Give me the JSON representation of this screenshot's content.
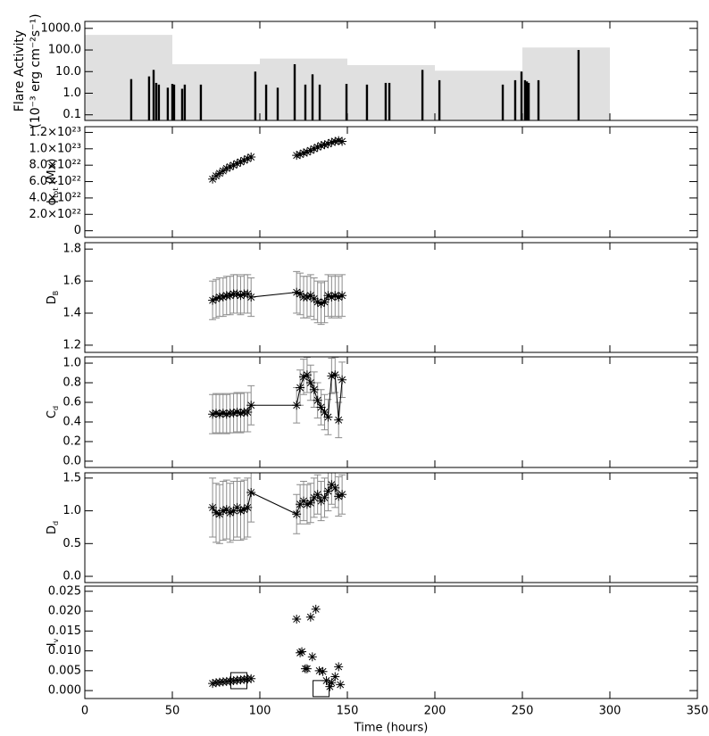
{
  "chart_data": [
    {
      "type": "bar",
      "ylabel": [
        "Flare Activity",
        "(10⁻³ erg cm⁻²s⁻¹)"
      ],
      "log_y": true,
      "ylim": [
        0.055,
        2100
      ],
      "yticks": [
        0.1,
        {
          "value": 1,
          "label": "1.0"
        },
        {
          "value": 10,
          "label": "10.0"
        },
        {
          "value": 100,
          "label": "100.0"
        },
        {
          "value": 1000,
          "label": "1000.0"
        }
      ],
      "xlim": [
        0,
        350
      ],
      "xticks": [
        0,
        50,
        100,
        150,
        200,
        250,
        300,
        350
      ],
      "background": {
        "edges": [
          0,
          50,
          100,
          150,
          200,
          250,
          300
        ],
        "values": [
          500,
          22,
          40,
          20,
          11,
          130
        ],
        "color": "#e0e0e0"
      },
      "x": [
        26.5,
        36.7,
        39.3,
        40.8,
        42.3,
        47.4,
        50,
        51,
        55.6,
        57.1,
        66.3,
        97.4,
        103.6,
        110.2,
        119.9,
        126,
        130.1,
        134.2,
        149.5,
        161.2,
        171.9,
        174,
        192.9,
        202.6,
        238.8,
        245.9,
        249.5,
        251.5,
        252.6,
        253.6,
        259.2,
        282.1
      ],
      "values": [
        4.5,
        6,
        12,
        3,
        2.5,
        1.8,
        2.7,
        2.5,
        1.6,
        2.5,
        2.5,
        10,
        2.5,
        1.8,
        22,
        2.5,
        7.5,
        2.5,
        2.7,
        2.5,
        3,
        3,
        12,
        4,
        2.5,
        4,
        10,
        4,
        3.5,
        3,
        4,
        100
      ],
      "color": "#000000"
    },
    {
      "type": "scatter",
      "ylabel": [
        {
          "t": "ϕ"
        },
        {
          "t": "tot",
          "sub": true
        },
        {
          "t": "(Mx)"
        }
      ],
      "ylim": [
        -8e+21,
        1.27e+23
      ],
      "yticks": [
        0,
        {
          "value": 2e+22,
          "label": "2.0×10²²"
        },
        {
          "value": 4e+22,
          "label": "4.0×10²²"
        },
        {
          "value": 6e+22,
          "label": "6.0×10²²"
        },
        {
          "value": 8e+22,
          "label": "8.0×10²²"
        },
        {
          "value": 1e+23,
          "label": "1.0×10²³"
        },
        {
          "value": 1.2e+23,
          "label": "1.2×10²³"
        }
      ],
      "xlim": [
        0,
        350
      ],
      "xticks": [
        0,
        50,
        100,
        150,
        200,
        250,
        300,
        350
      ],
      "x": [
        73,
        75,
        77,
        79,
        81,
        83,
        85,
        87,
        89,
        91,
        93,
        95,
        121,
        123,
        125,
        127,
        129,
        131,
        133,
        135,
        137,
        139,
        141,
        143,
        145,
        147
      ],
      "values": [
        6.3e+22,
        6.7e+22,
        7e+22,
        7.3e+22,
        7.6e+22,
        7.8e+22,
        8e+22,
        8.2e+22,
        8.4e+22,
        8.6e+22,
        8.8e+22,
        9e+22,
        9.2e+22,
        9.3e+22,
        9.5e+22,
        9.6e+22,
        9.8e+22,
        1e+23,
        1.02e+23,
        1.04e+23,
        1.05e+23,
        1.06e+23,
        1.08e+23,
        1.09e+23,
        1.1e+23,
        1.09e+23
      ],
      "color": "#000000"
    },
    {
      "type": "line",
      "ylabel": [
        {
          "t": "D"
        },
        {
          "t": "B",
          "sub": true
        }
      ],
      "ylim": [
        1.155,
        1.84
      ],
      "yticks": [
        1.2,
        1.4,
        1.6,
        1.8
      ],
      "xlim": [
        0,
        350
      ],
      "xticks": [
        0,
        50,
        100,
        150,
        200,
        250,
        300,
        350
      ],
      "x": [
        73,
        75,
        77,
        79,
        81,
        83,
        85,
        87,
        89,
        91,
        93,
        95,
        121,
        123,
        125,
        127,
        129,
        131,
        133,
        135,
        137,
        139,
        141,
        143,
        145,
        147
      ],
      "values": [
        1.48,
        1.49,
        1.5,
        1.5,
        1.51,
        1.51,
        1.52,
        1.52,
        1.51,
        1.52,
        1.52,
        1.5,
        1.53,
        1.52,
        1.5,
        1.5,
        1.51,
        1.49,
        1.47,
        1.46,
        1.47,
        1.51,
        1.5,
        1.51,
        1.5,
        1.51
      ],
      "errors": [
        0.12,
        0.12,
        0.12,
        0.12,
        0.12,
        0.12,
        0.12,
        0.12,
        0.12,
        0.12,
        0.12,
        0.12,
        0.13,
        0.13,
        0.13,
        0.13,
        0.13,
        0.13,
        0.13,
        0.13,
        0.13,
        0.13,
        0.13,
        0.13,
        0.13,
        0.13
      ],
      "color": "#000000",
      "error_color": "#8c8c8c"
    },
    {
      "type": "line",
      "ylabel": [
        {
          "t": "C"
        },
        {
          "t": "d",
          "sub": true
        }
      ],
      "ylim": [
        -0.064,
        1.064
      ],
      "yticks": [
        {
          "value": 0,
          "label": "0.0"
        },
        0.2,
        0.4,
        0.6,
        0.8,
        {
          "value": 1,
          "label": "1.0"
        }
      ],
      "xlim": [
        0,
        350
      ],
      "xticks": [
        0,
        50,
        100,
        150,
        200,
        250,
        300,
        350
      ],
      "x": [
        73,
        75,
        77,
        79,
        81,
        83,
        85,
        87,
        89,
        91,
        93,
        95,
        121,
        123,
        125,
        127,
        129,
        131,
        133,
        135,
        137,
        139,
        141,
        143,
        145,
        147
      ],
      "values": [
        0.48,
        0.49,
        0.48,
        0.49,
        0.48,
        0.49,
        0.49,
        0.5,
        0.49,
        0.5,
        0.5,
        0.57,
        0.57,
        0.75,
        0.86,
        0.88,
        0.8,
        0.73,
        0.62,
        0.55,
        0.5,
        0.45,
        0.87,
        0.88,
        0.42,
        0.83
      ],
      "errors": [
        0.2,
        0.2,
        0.2,
        0.2,
        0.2,
        0.2,
        0.2,
        0.2,
        0.2,
        0.2,
        0.2,
        0.2,
        0.18,
        0.18,
        0.18,
        0.18,
        0.18,
        0.18,
        0.18,
        0.18,
        0.18,
        0.18,
        0.18,
        0.18,
        0.18,
        0.18
      ],
      "color": "#000000",
      "error_color": "#8c8c8c"
    },
    {
      "type": "line",
      "ylabel": [
        {
          "t": "D"
        },
        {
          "t": "d",
          "sub": true
        }
      ],
      "ylim": [
        -0.095,
        1.58
      ],
      "yticks": [
        {
          "value": 0,
          "label": "0.0"
        },
        0.5,
        {
          "value": 1,
          "label": "1.0"
        },
        1.5
      ],
      "xlim": [
        0,
        350
      ],
      "xticks": [
        0,
        50,
        100,
        150,
        200,
        250,
        300,
        350
      ],
      "x": [
        73,
        75,
        77,
        79,
        81,
        83,
        85,
        87,
        89,
        91,
        93,
        95,
        121,
        123,
        125,
        127,
        129,
        131,
        133,
        135,
        137,
        139,
        141,
        143,
        145,
        147
      ],
      "values": [
        1.05,
        0.97,
        0.95,
        1.0,
        1.02,
        0.97,
        1.0,
        1.05,
        1.0,
        1.02,
        1.05,
        1.28,
        0.95,
        1.1,
        1.15,
        1.1,
        1.12,
        1.2,
        1.25,
        1.15,
        1.2,
        1.3,
        1.4,
        1.35,
        1.22,
        1.25
      ],
      "errors": [
        0.45,
        0.45,
        0.45,
        0.45,
        0.45,
        0.45,
        0.45,
        0.45,
        0.45,
        0.45,
        0.45,
        0.45,
        0.3,
        0.3,
        0.3,
        0.3,
        0.3,
        0.3,
        0.3,
        0.3,
        0.3,
        0.3,
        0.3,
        0.3,
        0.3,
        0.3
      ],
      "color": "#000000",
      "error_color": "#8c8c8c"
    },
    {
      "type": "scatter",
      "ylabel": [
        {
          "t": "I"
        },
        {
          "t": "v",
          "sub": true
        }
      ],
      "ylim": [
        -0.002,
        0.0263
      ],
      "yticks": [
        {
          "value": 0,
          "label": "0.000"
        },
        0.005,
        {
          "value": 0.01,
          "label": "0.010"
        },
        0.015,
        {
          "value": 0.02,
          "label": "0.020"
        },
        0.025
      ],
      "xlim": [
        0,
        350
      ],
      "xticks": [
        0,
        50,
        100,
        150,
        200,
        250,
        300,
        350
      ],
      "xlabel": "Time (hours)",
      "x": [
        73,
        75,
        77,
        79,
        81,
        83,
        85,
        87,
        89,
        91,
        93,
        95,
        121,
        123,
        124,
        126,
        127,
        129,
        130,
        132,
        134,
        136,
        138,
        140,
        141,
        143,
        145,
        146
      ],
      "values": [
        0.0018,
        0.002,
        0.0021,
        0.0022,
        0.0023,
        0.0024,
        0.0025,
        0.0026,
        0.0027,
        0.0028,
        0.0029,
        0.003,
        0.018,
        0.0095,
        0.0098,
        0.0055,
        0.0055,
        0.0185,
        0.0085,
        0.0205,
        0.005,
        0.0048,
        0.0025,
        0.001,
        0.002,
        0.0035,
        0.006,
        0.0015
      ],
      "squares": {
        "x": [
          88,
          135
        ],
        "values": [
          0.0025,
          0.0005
        ]
      },
      "color": "#000000"
    }
  ]
}
